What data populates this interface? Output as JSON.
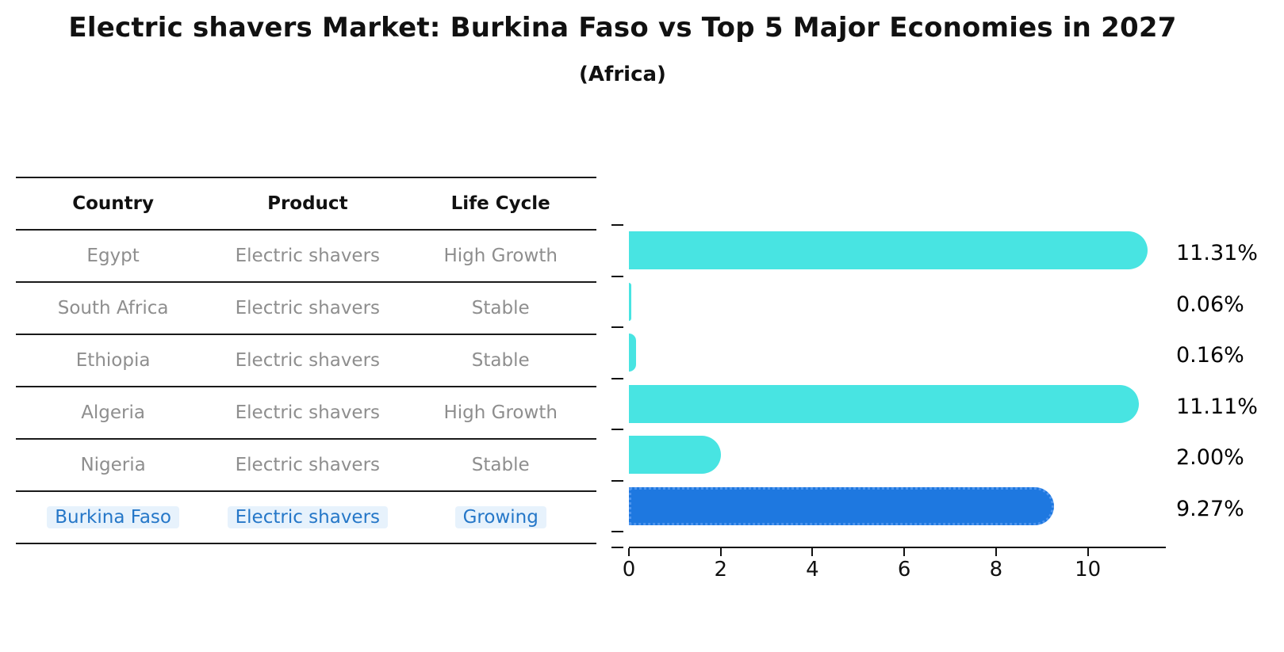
{
  "header": {
    "title": "Electric shavers Market: Burkina Faso vs Top 5 Major Economies in 2027",
    "subtitle": "(Africa)"
  },
  "table": {
    "columns": [
      "Country",
      "Product",
      "Life Cycle"
    ],
    "rows": [
      {
        "country": "Egypt",
        "product": "Electric shavers",
        "life_cycle": "High Growth",
        "highlighted": false
      },
      {
        "country": "South Africa",
        "product": "Electric shavers",
        "life_cycle": "Stable",
        "highlighted": false
      },
      {
        "country": "Ethiopia",
        "product": "Electric shavers",
        "life_cycle": "Stable",
        "highlighted": false
      },
      {
        "country": "Algeria",
        "product": "Electric shavers",
        "life_cycle": "High Growth",
        "highlighted": false
      },
      {
        "country": "Nigeria",
        "product": "Electric shavers",
        "life_cycle": "Stable",
        "highlighted": false
      },
      {
        "country": "Burkina Faso",
        "product": "Electric shavers",
        "life_cycle": "Growing",
        "highlighted": true
      }
    ]
  },
  "chart_data": {
    "type": "bar",
    "orientation": "horizontal",
    "title": "Electric shavers Market: Burkina Faso vs Top 5 Major Economies in 2027",
    "subtitle": "(Africa)",
    "categories": [
      "Egypt",
      "South Africa",
      "Ethiopia",
      "Algeria",
      "Nigeria",
      "Burkina Faso"
    ],
    "values": [
      11.31,
      0.06,
      0.16,
      11.11,
      2.0,
      9.27
    ],
    "value_labels": [
      "11.31%",
      "0.06%",
      "0.16%",
      "11.11%",
      "2.00%",
      "9.27%"
    ],
    "highlight_index": 5,
    "xlim": [
      0,
      11.7
    ],
    "xticks": [
      0,
      2,
      4,
      6,
      8,
      10
    ],
    "xtick_labels": [
      "0",
      "2",
      "4",
      "6",
      "8",
      "10"
    ],
    "grid": "off",
    "legend": "none",
    "colors": {
      "bar": "#48e4e2",
      "highlight_bar": "#1e78e0",
      "highlight_bar_border": "#4e95ee",
      "value_label": "#000000",
      "axis": "#111111"
    }
  },
  "colors": {
    "background": "#ffffff",
    "table_line": "#1a1a1a",
    "table_text": "#8e8e8e",
    "highlight_text": "#2577c8",
    "highlight_text_bg": "#e7f2fc"
  }
}
